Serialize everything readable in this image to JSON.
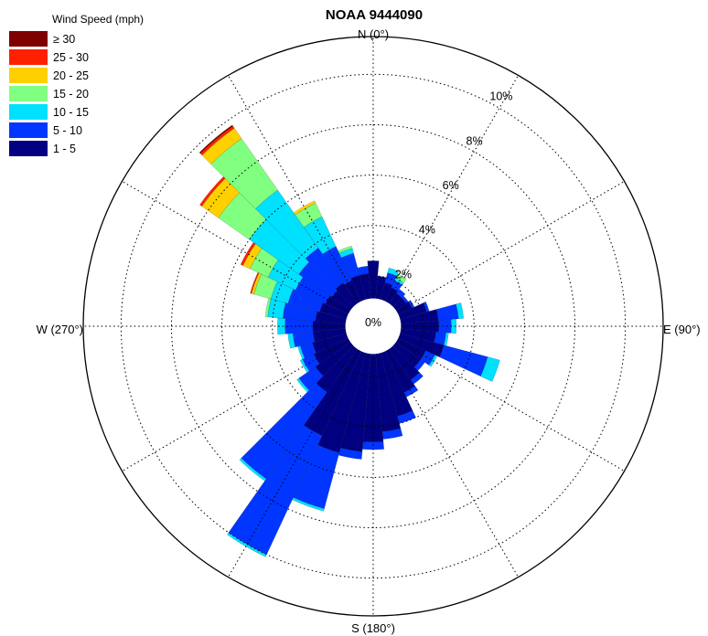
{
  "chart_data": {
    "type": "polar-bar",
    "title": "NOAA 9444090",
    "direction_labels": {
      "north": "N (0°)",
      "east": "E (90°)",
      "south": "S (180°)",
      "west": "W (270°)"
    },
    "radial_axis": {
      "unit": "%",
      "ticks": [
        0,
        2,
        4,
        6,
        8,
        10
      ],
      "tick_labels": [
        "0%",
        "2%",
        "4%",
        "6%",
        "8%",
        "10%"
      ],
      "max": 11.5,
      "inner_hole": 1.1
    },
    "legend": {
      "title": "Wind Speed (mph)",
      "placement": "top-left",
      "entries": [
        "≥ 30",
        "25 - 30",
        "20 - 25",
        "15 - 20",
        "10 - 15",
        "5 - 10",
        "1 - 5"
      ],
      "colors": [
        "#800000",
        "#ff2000",
        "#ffd000",
        "#80ff80",
        "#00e0ff",
        "#0036ff",
        "#000080"
      ]
    },
    "sector_width_deg": 10,
    "grid": true,
    "series_order_inner_to_outer": [
      "1 - 5",
      "5 - 10",
      "10 - 15",
      "15 - 20",
      "20 - 25",
      "25 - 30",
      "≥ 30"
    ],
    "sectors": [
      {
        "dir": 0,
        "cum": [
          2.6,
          2.6,
          2.6,
          2.6,
          2.6,
          2.6,
          2.6
        ]
      },
      {
        "dir": 10,
        "cum": [
          2.0,
          2.0,
          2.0,
          2.0,
          2.0,
          2.0,
          2.0
        ]
      },
      {
        "dir": 20,
        "cum": [
          1.8,
          2.2,
          2.4,
          2.4,
          2.4,
          2.4,
          2.4
        ]
      },
      {
        "dir": 30,
        "cum": [
          1.7,
          2.0,
          2.1,
          2.3,
          2.3,
          2.3,
          2.3
        ]
      },
      {
        "dir": 40,
        "cum": [
          1.6,
          1.8,
          1.8,
          1.8,
          1.8,
          1.8,
          1.8
        ]
      },
      {
        "dir": 50,
        "cum": [
          1.6,
          1.7,
          1.7,
          1.7,
          1.7,
          1.7,
          1.7
        ]
      },
      {
        "dir": 60,
        "cum": [
          1.7,
          1.8,
          1.8,
          1.8,
          1.8,
          1.8,
          1.8
        ]
      },
      {
        "dir": 70,
        "cum": [
          2.2,
          2.3,
          2.3,
          2.3,
          2.3,
          2.3,
          2.3
        ]
      },
      {
        "dir": 80,
        "cum": [
          2.6,
          3.4,
          3.6,
          3.6,
          3.6,
          3.6,
          3.6
        ]
      },
      {
        "dir": 90,
        "cum": [
          2.6,
          3.1,
          3.3,
          3.3,
          3.3,
          3.3,
          3.3
        ]
      },
      {
        "dir": 100,
        "cum": [
          2.5,
          2.9,
          3.0,
          3.0,
          3.0,
          3.0,
          3.0
        ]
      },
      {
        "dir": 110,
        "cum": [
          2.9,
          4.7,
          5.2,
          5.2,
          5.2,
          5.2,
          5.2
        ]
      },
      {
        "dir": 120,
        "cum": [
          2.3,
          2.7,
          2.8,
          2.8,
          2.8,
          2.8,
          2.8
        ]
      },
      {
        "dir": 130,
        "cum": [
          2.3,
          2.5,
          2.5,
          2.5,
          2.5,
          2.5,
          2.5
        ]
      },
      {
        "dir": 140,
        "cum": [
          2.6,
          2.8,
          2.8,
          2.8,
          2.8,
          2.8,
          2.8
        ]
      },
      {
        "dir": 150,
        "cum": [
          2.9,
          3.1,
          3.1,
          3.1,
          3.1,
          3.1,
          3.1
        ]
      },
      {
        "dir": 160,
        "cum": [
          3.7,
          4.0,
          4.0,
          4.0,
          4.0,
          4.0,
          4.0
        ]
      },
      {
        "dir": 170,
        "cum": [
          4.2,
          4.5,
          4.5,
          4.5,
          4.5,
          4.5,
          4.5
        ]
      },
      {
        "dir": 180,
        "cum": [
          4.6,
          4.9,
          4.9,
          4.9,
          4.9,
          4.9,
          4.9
        ]
      },
      {
        "dir": 190,
        "cum": [
          5.0,
          5.3,
          5.3,
          5.3,
          5.3,
          5.3,
          5.3
        ]
      },
      {
        "dir": 200,
        "cum": [
          5.2,
          7.5,
          7.6,
          7.6,
          7.6,
          7.6,
          7.6
        ]
      },
      {
        "dir": 210,
        "cum": [
          4.8,
          10.0,
          10.1,
          10.1,
          10.1,
          10.1,
          10.1
        ]
      },
      {
        "dir": 220,
        "cum": [
          3.2,
          7.4,
          7.5,
          7.5,
          7.5,
          7.5,
          7.5
        ]
      },
      {
        "dir": 230,
        "cum": [
          2.8,
          3.6,
          3.7,
          3.7,
          3.7,
          3.7,
          3.7
        ]
      },
      {
        "dir": 240,
        "cum": [
          2.6,
          3.1,
          3.2,
          3.2,
          3.2,
          3.2,
          3.2
        ]
      },
      {
        "dir": 250,
        "cum": [
          2.5,
          3.0,
          3.1,
          3.1,
          3.1,
          3.1,
          3.1
        ]
      },
      {
        "dir": 260,
        "cum": [
          2.4,
          3.2,
          3.4,
          3.4,
          3.4,
          3.4,
          3.4
        ]
      },
      {
        "dir": 270,
        "cum": [
          2.4,
          3.5,
          3.8,
          3.8,
          3.8,
          3.8,
          3.8
        ]
      },
      {
        "dir": 280,
        "cum": [
          2.3,
          3.6,
          4.2,
          4.3,
          4.3,
          4.3,
          4.3
        ]
      },
      {
        "dir": 290,
        "cum": [
          2.2,
          3.5,
          4.2,
          4.9,
          5.0,
          5.05,
          5.05
        ]
      },
      {
        "dir": 300,
        "cum": [
          2.1,
          3.4,
          4.6,
          5.4,
          5.7,
          5.8,
          5.8
        ]
      },
      {
        "dir": 310,
        "cum": [
          2.0,
          3.6,
          6.0,
          7.5,
          8.3,
          8.4,
          8.4
        ]
      },
      {
        "dir": 320,
        "cum": [
          2.1,
          3.8,
          6.6,
          9.1,
          9.6,
          9.7,
          9.75
        ]
      },
      {
        "dir": 330,
        "cum": [
          2.0,
          3.5,
          4.8,
          5.4,
          5.5,
          5.5,
          5.5
        ]
      },
      {
        "dir": 340,
        "cum": [
          2.1,
          3.0,
          3.2,
          3.3,
          3.3,
          3.3,
          3.3
        ]
      },
      {
        "dir": 350,
        "cum": [
          2.1,
          2.4,
          2.4,
          2.4,
          2.4,
          2.4,
          2.4
        ]
      }
    ]
  }
}
